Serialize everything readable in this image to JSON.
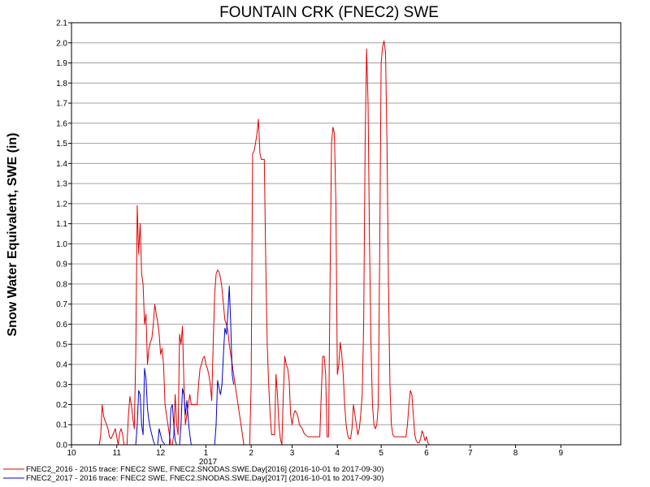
{
  "chart_data": {
    "type": "line",
    "title": "FOUNTAIN CRK (FNEC2) SWE",
    "ylabel": "Snow Water Equivalent, SWE (in)",
    "xlabel": "",
    "ylim": [
      0,
      2.1
    ],
    "yticks": [
      "0.0",
      "0.1",
      "0.2",
      "0.3",
      "0.4",
      "0.5",
      "0.6",
      "0.7",
      "0.8",
      "0.9",
      "1.0",
      "1.1",
      "1.2",
      "1.3",
      "1.4",
      "1.5",
      "1.6",
      "1.7",
      "1.8",
      "1.9",
      "2.0",
      "2.1"
    ],
    "xlim": [
      "2016-10-01",
      "2017-10-12"
    ],
    "xticks": [
      {
        "date": "2016-10-01",
        "label": "10"
      },
      {
        "date": "2016-11-01",
        "label": "11"
      },
      {
        "date": "2016-12-01",
        "label": "12"
      },
      {
        "date": "2017-01-01",
        "label": "1"
      },
      {
        "date": "2017-02-01",
        "label": "2"
      },
      {
        "date": "2017-03-01",
        "label": "3"
      },
      {
        "date": "2017-04-01",
        "label": "4"
      },
      {
        "date": "2017-05-01",
        "label": "5"
      },
      {
        "date": "2017-06-01",
        "label": "6"
      },
      {
        "date": "2017-07-01",
        "label": "7"
      },
      {
        "date": "2017-08-01",
        "label": "8"
      },
      {
        "date": "2017-09-01",
        "label": "9"
      }
    ],
    "year_label": "2017",
    "grid": true,
    "legend_position": "bottom",
    "series": [
      {
        "name": "FNEC2_2016 - 2015 trace: FNEC2 SWE, FNEC2.SNODAS.SWE.Day[2016] (2016-10-01 to 2017-09-30)",
        "color": "#e00000",
        "points": [
          [
            "2016-10-20",
            0.0
          ],
          [
            "2016-10-21",
            0.05
          ],
          [
            "2016-10-22",
            0.2
          ],
          [
            "2016-10-23",
            0.14
          ],
          [
            "2016-10-24",
            0.12
          ],
          [
            "2016-10-26",
            0.08
          ],
          [
            "2016-10-27",
            0.04
          ],
          [
            "2016-10-28",
            0.03
          ],
          [
            "2016-10-30",
            0.06
          ],
          [
            "2016-10-31",
            0.08
          ],
          [
            "2016-11-01",
            0.04
          ],
          [
            "2016-11-02",
            0.0
          ],
          [
            "2016-11-03",
            0.06
          ],
          [
            "2016-11-04",
            0.08
          ],
          [
            "2016-11-05",
            0.05
          ],
          [
            "2016-11-06",
            0.0
          ],
          [
            "2016-11-08",
            0.0
          ],
          [
            "2016-11-09",
            0.15
          ],
          [
            "2016-11-10",
            0.24
          ],
          [
            "2016-11-11",
            0.2
          ],
          [
            "2016-11-12",
            0.13
          ],
          [
            "2016-11-13",
            0.08
          ],
          [
            "2016-11-14",
            0.45
          ],
          [
            "2016-11-15",
            1.19
          ],
          [
            "2016-11-16",
            0.95
          ],
          [
            "2016-11-17",
            1.1
          ],
          [
            "2016-11-18",
            0.85
          ],
          [
            "2016-11-19",
            0.8
          ],
          [
            "2016-11-20",
            0.6
          ],
          [
            "2016-11-21",
            0.65
          ],
          [
            "2016-11-22",
            0.4
          ],
          [
            "2016-11-23",
            0.48
          ],
          [
            "2016-11-24",
            0.51
          ],
          [
            "2016-11-25",
            0.53
          ],
          [
            "2016-11-26",
            0.6
          ],
          [
            "2016-11-27",
            0.7
          ],
          [
            "2016-11-28",
            0.65
          ],
          [
            "2016-11-29",
            0.61
          ],
          [
            "2016-11-30",
            0.55
          ],
          [
            "2016-12-01",
            0.45
          ],
          [
            "2016-12-02",
            0.48
          ],
          [
            "2016-12-03",
            0.4
          ],
          [
            "2016-12-04",
            0.2
          ],
          [
            "2016-12-05",
            0.15
          ],
          [
            "2016-12-06",
            0.1
          ],
          [
            "2016-12-07",
            0.05
          ],
          [
            "2016-12-08",
            0.0
          ],
          [
            "2016-12-09",
            0.0
          ],
          [
            "2016-12-10",
            0.05
          ],
          [
            "2016-12-11",
            0.25
          ],
          [
            "2016-12-12",
            0.1
          ],
          [
            "2016-12-13",
            0.05
          ],
          [
            "2016-12-14",
            0.55
          ],
          [
            "2016-12-15",
            0.5
          ],
          [
            "2016-12-16",
            0.59
          ],
          [
            "2016-12-17",
            0.3
          ],
          [
            "2016-12-18",
            0.1
          ],
          [
            "2016-12-19",
            0.15
          ],
          [
            "2016-12-20",
            0.2
          ],
          [
            "2016-12-21",
            0.25
          ],
          [
            "2016-12-22",
            0.2
          ],
          [
            "2016-12-24",
            0.2
          ],
          [
            "2016-12-26",
            0.2
          ],
          [
            "2016-12-27",
            0.3
          ],
          [
            "2016-12-28",
            0.38
          ],
          [
            "2016-12-29",
            0.4
          ],
          [
            "2016-12-30",
            0.43
          ],
          [
            "2016-12-31",
            0.44
          ],
          [
            "2017-01-01",
            0.4
          ],
          [
            "2017-01-02",
            0.38
          ],
          [
            "2017-01-03",
            0.35
          ],
          [
            "2017-01-04",
            0.3
          ],
          [
            "2017-01-05",
            0.22
          ],
          [
            "2017-01-06",
            0.5
          ],
          [
            "2017-01-07",
            0.75
          ],
          [
            "2017-01-08",
            0.85
          ],
          [
            "2017-01-09",
            0.87
          ],
          [
            "2017-01-10",
            0.86
          ],
          [
            "2017-01-11",
            0.83
          ],
          [
            "2017-01-12",
            0.78
          ],
          [
            "2017-01-13",
            0.7
          ],
          [
            "2017-01-14",
            0.62
          ],
          [
            "2017-01-15",
            0.6
          ],
          [
            "2017-01-16",
            0.57
          ],
          [
            "2017-01-17",
            0.5
          ],
          [
            "2017-01-18",
            0.45
          ],
          [
            "2017-01-19",
            0.4
          ],
          [
            "2017-01-20",
            0.35
          ],
          [
            "2017-01-21",
            0.3
          ],
          [
            "2017-01-22",
            0.25
          ],
          [
            "2017-01-23",
            0.2
          ],
          [
            "2017-01-24",
            0.15
          ],
          [
            "2017-01-25",
            0.1
          ],
          [
            "2017-01-26",
            0.05
          ],
          [
            "2017-01-27",
            0.0
          ],
          [
            "2017-01-28",
            0.0
          ],
          [
            "2017-01-29",
            0.0
          ],
          [
            "2017-01-30",
            0.0
          ],
          [
            "2017-01-31",
            0.0
          ],
          [
            "2017-02-01",
            0.3
          ],
          [
            "2017-02-02",
            1.45
          ],
          [
            "2017-02-03",
            1.46
          ],
          [
            "2017-02-04",
            1.5
          ],
          [
            "2017-02-05",
            1.55
          ],
          [
            "2017-02-06",
            1.62
          ],
          [
            "2017-02-07",
            1.45
          ],
          [
            "2017-02-08",
            1.42
          ],
          [
            "2017-02-09",
            1.42
          ],
          [
            "2017-02-10",
            1.42
          ],
          [
            "2017-02-11",
            0.9
          ],
          [
            "2017-02-12",
            0.5
          ],
          [
            "2017-02-13",
            0.3
          ],
          [
            "2017-02-14",
            0.15
          ],
          [
            "2017-02-15",
            0.05
          ],
          [
            "2017-02-16",
            0.05
          ],
          [
            "2017-02-17",
            0.05
          ],
          [
            "2017-02-18",
            0.35
          ],
          [
            "2017-02-19",
            0.25
          ],
          [
            "2017-02-20",
            0.1
          ],
          [
            "2017-02-21",
            0.03
          ],
          [
            "2017-02-22",
            0.0
          ],
          [
            "2017-02-23",
            0.25
          ],
          [
            "2017-02-24",
            0.44
          ],
          [
            "2017-02-25",
            0.4
          ],
          [
            "2017-02-26",
            0.38
          ],
          [
            "2017-02-27",
            0.32
          ],
          [
            "2017-02-28",
            0.15
          ],
          [
            "2017-03-01",
            0.1
          ],
          [
            "2017-03-02",
            0.15
          ],
          [
            "2017-03-03",
            0.17
          ],
          [
            "2017-03-04",
            0.16
          ],
          [
            "2017-03-05",
            0.14
          ],
          [
            "2017-03-06",
            0.1
          ],
          [
            "2017-03-07",
            0.09
          ],
          [
            "2017-03-08",
            0.08
          ],
          [
            "2017-03-09",
            0.06
          ],
          [
            "2017-03-10",
            0.05
          ],
          [
            "2017-03-12",
            0.04
          ],
          [
            "2017-03-14",
            0.04
          ],
          [
            "2017-03-16",
            0.04
          ],
          [
            "2017-03-18",
            0.04
          ],
          [
            "2017-03-20",
            0.04
          ],
          [
            "2017-03-21",
            0.25
          ],
          [
            "2017-03-22",
            0.44
          ],
          [
            "2017-03-23",
            0.44
          ],
          [
            "2017-03-24",
            0.35
          ],
          [
            "2017-03-25",
            0.04
          ],
          [
            "2017-03-26",
            0.04
          ],
          [
            "2017-03-27",
            0.8
          ],
          [
            "2017-03-28",
            1.5
          ],
          [
            "2017-03-29",
            1.58
          ],
          [
            "2017-03-30",
            1.55
          ],
          [
            "2017-03-31",
            1.2
          ],
          [
            "2017-04-01",
            0.35
          ],
          [
            "2017-04-02",
            0.4
          ],
          [
            "2017-04-03",
            0.51
          ],
          [
            "2017-04-04",
            0.45
          ],
          [
            "2017-04-05",
            0.35
          ],
          [
            "2017-04-06",
            0.2
          ],
          [
            "2017-04-07",
            0.1
          ],
          [
            "2017-04-08",
            0.05
          ],
          [
            "2017-04-09",
            0.03
          ],
          [
            "2017-04-10",
            0.03
          ],
          [
            "2017-04-11",
            0.08
          ],
          [
            "2017-04-12",
            0.2
          ],
          [
            "2017-04-13",
            0.15
          ],
          [
            "2017-04-14",
            0.1
          ],
          [
            "2017-04-15",
            0.05
          ],
          [
            "2017-04-16",
            0.08
          ],
          [
            "2017-04-17",
            0.15
          ],
          [
            "2017-04-18",
            0.25
          ],
          [
            "2017-04-19",
            0.6
          ],
          [
            "2017-04-20",
            1.5
          ],
          [
            "2017-04-21",
            1.97
          ],
          [
            "2017-04-22",
            1.7
          ],
          [
            "2017-04-23",
            1.0
          ],
          [
            "2017-04-24",
            0.5
          ],
          [
            "2017-04-25",
            0.2
          ],
          [
            "2017-04-26",
            0.1
          ],
          [
            "2017-04-27",
            0.08
          ],
          [
            "2017-04-28",
            0.1
          ],
          [
            "2017-04-29",
            0.2
          ],
          [
            "2017-04-30",
            1.0
          ],
          [
            "2017-05-01",
            1.9
          ],
          [
            "2017-05-02",
            1.98
          ],
          [
            "2017-05-03",
            2.01
          ],
          [
            "2017-05-04",
            1.95
          ],
          [
            "2017-05-05",
            1.5
          ],
          [
            "2017-05-06",
            0.8
          ],
          [
            "2017-05-07",
            0.3
          ],
          [
            "2017-05-08",
            0.1
          ],
          [
            "2017-05-09",
            0.05
          ],
          [
            "2017-05-10",
            0.04
          ],
          [
            "2017-05-12",
            0.04
          ],
          [
            "2017-05-14",
            0.04
          ],
          [
            "2017-05-16",
            0.04
          ],
          [
            "2017-05-18",
            0.04
          ],
          [
            "2017-05-19",
            0.1
          ],
          [
            "2017-05-20",
            0.2
          ],
          [
            "2017-05-21",
            0.27
          ],
          [
            "2017-05-22",
            0.25
          ],
          [
            "2017-05-23",
            0.15
          ],
          [
            "2017-05-24",
            0.05
          ],
          [
            "2017-05-25",
            0.02
          ],
          [
            "2017-05-26",
            0.01
          ],
          [
            "2017-05-27",
            0.01
          ],
          [
            "2017-05-28",
            0.03
          ],
          [
            "2017-05-29",
            0.07
          ],
          [
            "2017-05-30",
            0.05
          ],
          [
            "2017-05-31",
            0.02
          ],
          [
            "2017-06-01",
            0.04
          ],
          [
            "2017-06-02",
            0.01
          ],
          [
            "2017-06-03",
            0.0
          ]
        ]
      },
      {
        "name": "FNEC2_2017 - 2016 trace: FNEC2 SWE, FNEC2.SNODAS.SWE.Day[2017] (2016-10-01 to 2017-09-30)",
        "color": "#0000d0",
        "points": [
          [
            "2016-11-14",
            0.0
          ],
          [
            "2016-11-15",
            0.1
          ],
          [
            "2016-11-16",
            0.27
          ],
          [
            "2016-11-17",
            0.25
          ],
          [
            "2016-11-18",
            0.1
          ],
          [
            "2016-11-19",
            0.05
          ],
          [
            "2016-11-20",
            0.38
          ],
          [
            "2016-11-21",
            0.33
          ],
          [
            "2016-11-22",
            0.18
          ],
          [
            "2016-11-23",
            0.12
          ],
          [
            "2016-11-24",
            0.08
          ],
          [
            "2016-11-25",
            0.05
          ],
          [
            "2016-11-26",
            0.02
          ],
          [
            "2016-11-27",
            0.0
          ],
          [
            "2016-11-29",
            0.0
          ],
          [
            "2016-11-30",
            0.08
          ],
          [
            "2016-12-01",
            0.05
          ],
          [
            "2016-12-02",
            0.02
          ],
          [
            "2016-12-04",
            0.0
          ],
          [
            "2016-12-07",
            0.0
          ],
          [
            "2016-12-08",
            0.18
          ],
          [
            "2016-12-09",
            0.2
          ],
          [
            "2016-12-10",
            0.1
          ],
          [
            "2016-12-11",
            0.02
          ],
          [
            "2016-12-12",
            0.0
          ],
          [
            "2016-12-14",
            0.0
          ],
          [
            "2016-12-15",
            0.1
          ],
          [
            "2016-12-16",
            0.28
          ],
          [
            "2016-12-17",
            0.25
          ],
          [
            "2016-12-18",
            0.15
          ],
          [
            "2016-12-19",
            0.22
          ],
          [
            "2016-12-20",
            0.12
          ],
          [
            "2016-12-21",
            0.05
          ],
          [
            "2016-12-22",
            0.0
          ],
          [
            "2017-01-07",
            0.0
          ],
          [
            "2017-01-08",
            0.1
          ],
          [
            "2017-01-09",
            0.32
          ],
          [
            "2017-01-10",
            0.28
          ],
          [
            "2017-01-11",
            0.25
          ],
          [
            "2017-01-12",
            0.3
          ],
          [
            "2017-01-13",
            0.45
          ],
          [
            "2017-01-14",
            0.58
          ],
          [
            "2017-01-15",
            0.55
          ],
          [
            "2017-01-16",
            0.65
          ],
          [
            "2017-01-17",
            0.79
          ],
          [
            "2017-01-18",
            0.6
          ],
          [
            "2017-01-19",
            0.35
          ],
          [
            "2017-01-20",
            0.3
          ]
        ]
      }
    ]
  }
}
